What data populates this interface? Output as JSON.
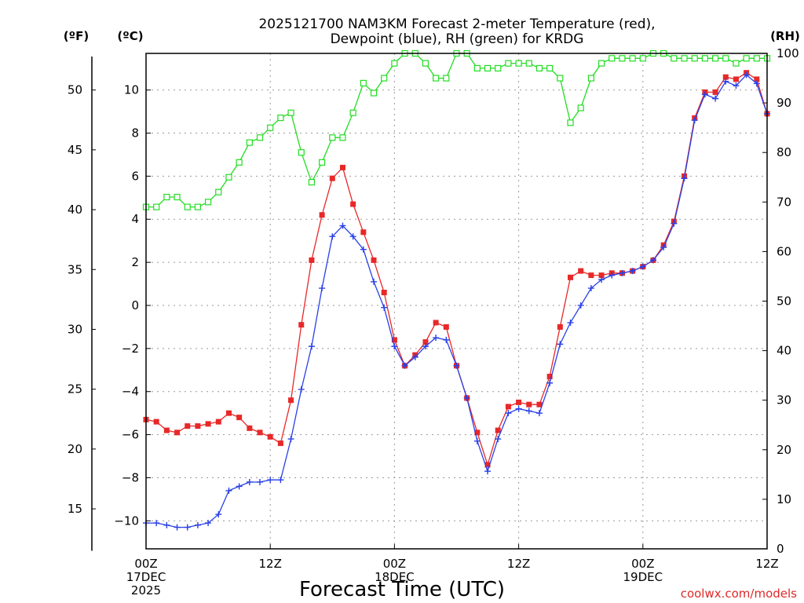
{
  "chart_data": {
    "type": "line",
    "title": "2025121700 NAM3KM Forecast 2-meter Temperature (red),",
    "subtitle": "Dewpoint (blue), RH (green) for KRDG",
    "xlabel": "Forecast Time (UTC)",
    "credit": "coolwx.com/models",
    "x_unit": "forecast hour",
    "xlim": [
      0,
      60
    ],
    "x_ticks": [
      {
        "hour": 0,
        "lines": [
          "00Z",
          "17DEC",
          "2025"
        ]
      },
      {
        "hour": 12,
        "lines": [
          "12Z"
        ]
      },
      {
        "hour": 24,
        "lines": [
          "00Z",
          "18DEC"
        ]
      },
      {
        "hour": 36,
        "lines": [
          "12Z"
        ]
      },
      {
        "hour": 48,
        "lines": [
          "00Z",
          "19DEC"
        ]
      },
      {
        "hour": 60,
        "lines": [
          "12Z"
        ]
      }
    ],
    "axes": {
      "fahrenheit": {
        "label": "(ºF)",
        "ticks": [
          15,
          20,
          25,
          30,
          35,
          40,
          45,
          50
        ]
      },
      "celsius": {
        "label": "(ºC)",
        "ylim": [
          -11.3,
          11.7
        ],
        "ticks": [
          -10,
          -8,
          -6,
          -4,
          -2,
          0,
          2,
          4,
          6,
          8,
          10
        ]
      },
      "rh": {
        "label": "(RH)",
        "ylim": [
          0,
          100
        ],
        "ticks": [
          0,
          10,
          20,
          30,
          40,
          50,
          60,
          70,
          80,
          90,
          100
        ]
      }
    },
    "x": [
      0,
      1,
      2,
      3,
      4,
      5,
      6,
      7,
      8,
      9,
      10,
      11,
      12,
      13,
      14,
      15,
      16,
      17,
      18,
      19,
      20,
      21,
      22,
      23,
      24,
      25,
      26,
      27,
      28,
      29,
      30,
      31,
      32,
      33,
      34,
      35,
      36,
      37,
      38,
      39,
      40,
      41,
      42,
      43,
      44,
      45,
      46,
      47,
      48,
      49,
      50,
      51,
      52,
      53,
      54,
      55,
      56,
      57,
      58,
      59,
      60
    ],
    "series": [
      {
        "name": "Temperature (red)",
        "axis": "celsius",
        "color": "#e82828",
        "marker": "filled-square",
        "values": [
          -5.3,
          -5.4,
          -5.8,
          -5.9,
          -5.6,
          -5.6,
          -5.5,
          -5.4,
          -5.0,
          -5.2,
          -5.7,
          -5.9,
          -6.1,
          -6.4,
          -4.4,
          -0.9,
          2.1,
          4.2,
          5.9,
          6.4,
          4.7,
          3.4,
          2.1,
          0.6,
          -1.6,
          -2.8,
          -2.3,
          -1.7,
          -0.8,
          -1.0,
          -2.8,
          -4.3,
          -5.9,
          -7.4,
          -5.8,
          -4.7,
          -4.5,
          -4.6,
          -4.6,
          -3.3,
          -1.0,
          1.3,
          1.6,
          1.4,
          1.4,
          1.5,
          1.5,
          1.6,
          1.8,
          2.1,
          2.8,
          3.9,
          6.0,
          8.7,
          9.9,
          9.9,
          10.6,
          10.5,
          10.8,
          10.5,
          8.9
        ]
      },
      {
        "name": "Dewpoint (blue)",
        "axis": "celsius",
        "color": "#2840e8",
        "marker": "plus",
        "values": [
          -10.1,
          -10.1,
          -10.2,
          -10.3,
          -10.3,
          -10.2,
          -10.1,
          -9.7,
          -8.6,
          -8.4,
          -8.2,
          -8.2,
          -8.1,
          -8.1,
          -6.2,
          -3.9,
          -1.9,
          0.8,
          3.2,
          3.7,
          3.2,
          2.6,
          1.1,
          -0.1,
          -1.9,
          -2.8,
          -2.4,
          -1.9,
          -1.5,
          -1.6,
          -2.8,
          -4.3,
          -6.3,
          -7.7,
          -6.2,
          -5.0,
          -4.8,
          -4.9,
          -5.0,
          -3.6,
          -1.8,
          -0.8,
          0.0,
          0.8,
          1.2,
          1.4,
          1.5,
          1.6,
          1.8,
          2.1,
          2.7,
          3.8,
          5.9,
          8.6,
          9.8,
          9.6,
          10.4,
          10.2,
          10.7,
          10.3,
          8.9
        ]
      },
      {
        "name": "RH (green)",
        "axis": "rh",
        "color": "#22dd22",
        "marker": "open-square",
        "values": [
          69,
          69,
          71,
          71,
          69,
          69,
          70,
          72,
          75,
          78,
          82,
          83,
          85,
          87,
          88,
          80,
          74,
          78,
          83,
          83,
          88,
          94,
          92,
          95,
          98,
          100,
          100,
          98,
          95,
          95,
          100,
          100,
          97,
          97,
          97,
          98,
          98,
          98,
          97,
          97,
          95,
          86,
          89,
          95,
          98,
          99,
          99,
          99,
          99,
          100,
          100,
          99,
          99,
          99,
          99,
          99,
          99,
          98,
          99,
          99,
          99
        ]
      }
    ]
  }
}
